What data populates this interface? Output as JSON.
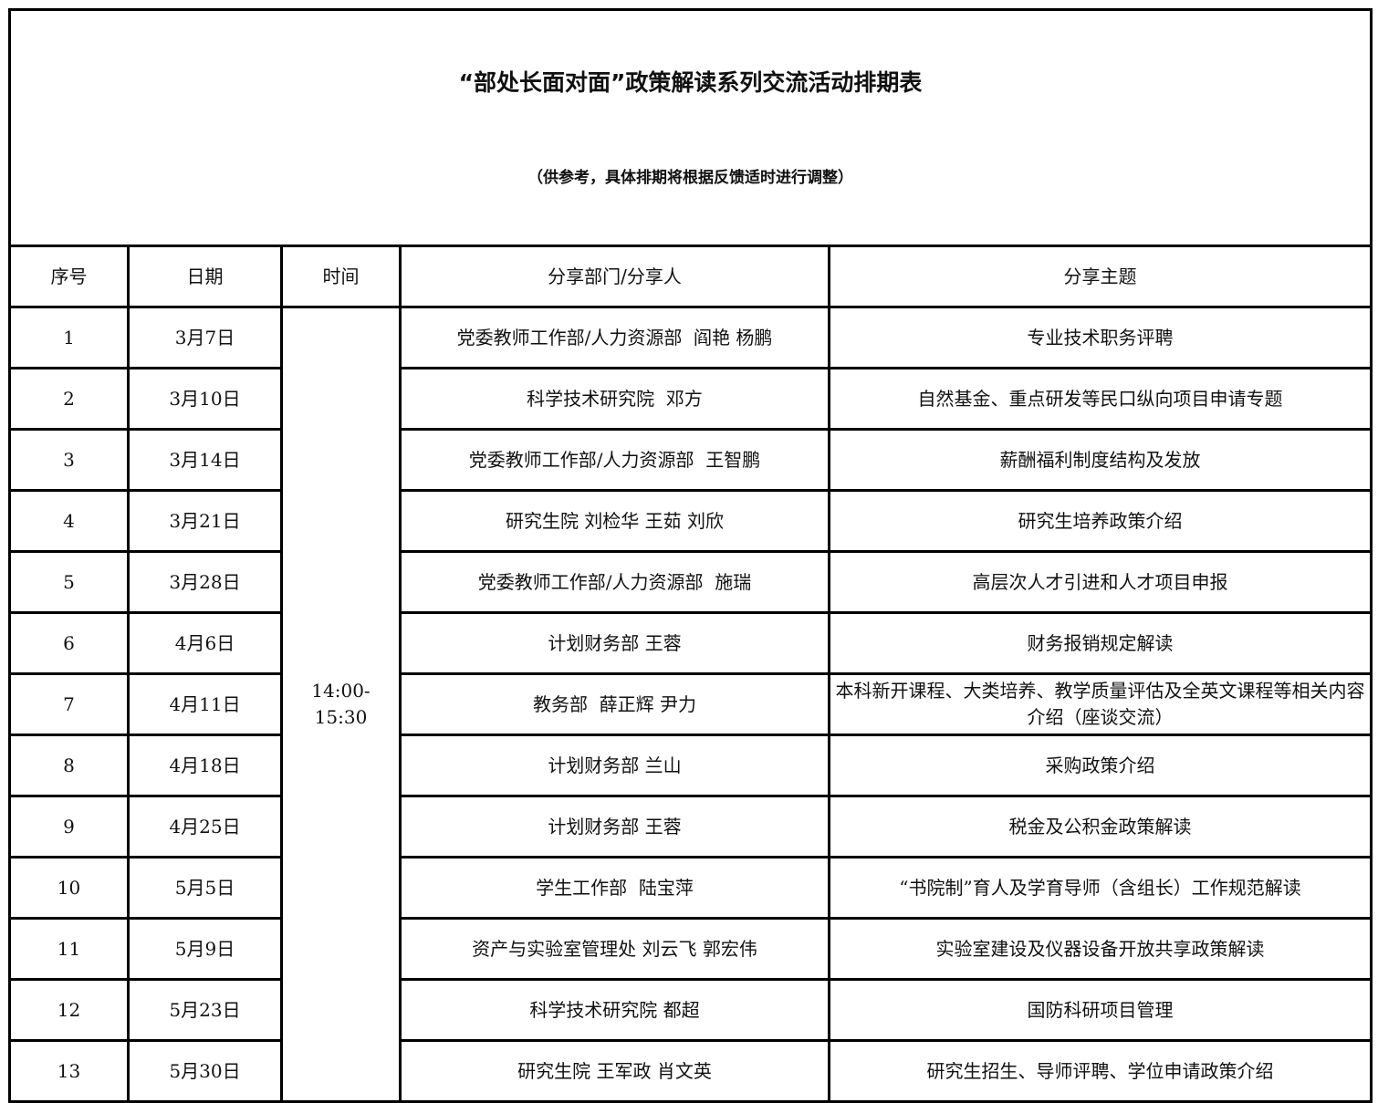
{
  "title": "“部处长面对面”政策解读系列交流活动排期表",
  "subtitle": "（供参考，具体排期将根据反馈适时进行调整）",
  "headers": [
    "序号",
    "日期",
    "时间",
    "分享部门/分享人",
    "分享主题"
  ],
  "time": "14:00-\n15:30",
  "rows": [
    {
      "no": "1",
      "date": "3月7日",
      "dept": "党委教师工作部/人力资源部  阎艳 杨鹏",
      "topic": "专业技术职务评聘"
    },
    {
      "no": "2",
      "date": "3月10日",
      "dept": "科学技术研究院  邓方",
      "topic": "自然基金、重点研发等民口纵向项目申请专题"
    },
    {
      "no": "3",
      "date": "3月14日",
      "dept": "党委教师工作部/人力资源部  王智鹏",
      "topic": "薪酬福利制度结构及发放"
    },
    {
      "no": "4",
      "date": "3月21日",
      "dept": "研究生院 刘检华 王茹 刘欣",
      "topic": "研究生培养政策介绍"
    },
    {
      "no": "5",
      "date": "3月28日",
      "dept": "党委教师工作部/人力资源部  施瑞",
      "topic": "高层次人才引进和人才项目申报"
    },
    {
      "no": "6",
      "date": "4月6日",
      "dept": "计划财务部 王蓉",
      "topic": "财务报销规定解读"
    },
    {
      "no": "7",
      "date": "4月11日",
      "dept": "教务部  薛正辉 尹力",
      "topic": "本科新开课程、大类培养、教学质量评估及全英文课程等相关内容介绍（座谈交流）"
    },
    {
      "no": "8",
      "date": "4月18日",
      "dept": "计划财务部 兰山",
      "topic": "采购政策介绍"
    },
    {
      "no": "9",
      "date": "4月25日",
      "dept": "计划财务部 王蓉",
      "topic": "税金及公积金政策解读"
    },
    {
      "no": "10",
      "date": "5月5日",
      "dept": "学生工作部  陆宝萍",
      "topic": "“书院制”育人及学育导师（含组长）工作规范解读"
    },
    {
      "no": "11",
      "date": "5月9日",
      "dept": "资产与实验室管理处 刘云飞 郭宏伟",
      "topic": "实验室建设及仪器设备开放共享政策解读"
    },
    {
      "no": "12",
      "date": "5月23日",
      "dept": "科学技术研究院 都超",
      "topic": "国防科研项目管理"
    },
    {
      "no": "13",
      "date": "5月30日",
      "dept": "研究生院 王军政 肖文英",
      "topic": "研究生招生、导师评聘、学位申请政策介绍"
    }
  ]
}
